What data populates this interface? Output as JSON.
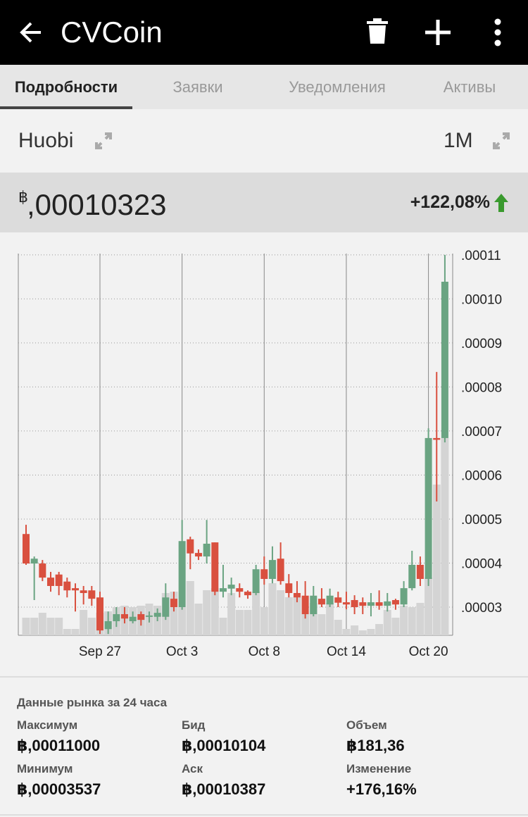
{
  "header": {
    "title": "CVCoin"
  },
  "tabs": {
    "items": [
      "Подробности",
      "Заявки",
      "Уведомления",
      "Активы"
    ],
    "active": 0
  },
  "source": {
    "exchange": "Huobi",
    "period": "1M"
  },
  "price": {
    "symbol": "฿",
    "value": ",00010323",
    "change": "+122,08%"
  },
  "chart_data": {
    "type": "candlestick",
    "categories": [
      null,
      null,
      null,
      null,
      null,
      null,
      null,
      null,
      null,
      "Sep 27",
      null,
      null,
      null,
      null,
      null,
      null,
      null,
      null,
      null,
      "Oct 3",
      null,
      null,
      null,
      null,
      null,
      null,
      null,
      null,
      null,
      "Oct 8",
      null,
      null,
      null,
      null,
      null,
      null,
      null,
      null,
      null,
      "Oct 14",
      null,
      null,
      null,
      null,
      null,
      null,
      null,
      null,
      null,
      "Oct 20",
      null,
      null
    ],
    "open": [
      4.66e-05,
      3.99e-05,
      3.99e-05,
      3.67e-05,
      3.74e-05,
      3.58e-05,
      3.43e-05,
      3.38e-05,
      3.38e-05,
      3.22e-05,
      2.5e-05,
      2.68e-05,
      2.84e-05,
      2.68e-05,
      2.84e-05,
      2.78e-05,
      2.78e-05,
      2.78e-05,
      3.19e-05,
      3e-05,
      4.54e-05,
      4.23e-05,
      4.15e-05,
      4.47e-05,
      3.35e-05,
      3.42e-05,
      3.43e-05,
      3.35e-05,
      3.32e-05,
      3.86e-05,
      3.64e-05,
      4.1e-05,
      3.54e-05,
      3.32e-05,
      3.26e-05,
      2.84e-05,
      3.19e-05,
      3.06e-05,
      3.22e-05,
      3.11e-05,
      3.16e-05,
      3.11e-05,
      3.03e-05,
      3.11e-05,
      3.03e-05,
      3.16e-05,
      3.06e-05,
      3.43e-05,
      3.96e-05,
      3.64e-05,
      6.84e-05,
      6.84e-05
    ],
    "high": [
      4.87e-05,
      4.15e-05,
      4.07e-05,
      3.8e-05,
      3.8e-05,
      3.67e-05,
      3.54e-05,
      3.48e-05,
      3.48e-05,
      3.35e-05,
      2.9e-05,
      3e-05,
      3e-05,
      2.9e-05,
      2.9e-05,
      2.9e-05,
      2.97e-05,
      3.54e-05,
      3.35e-05,
      4.98e-05,
      4.6e-05,
      4.31e-05,
      4.98e-05,
      4.47e-05,
      3.96e-05,
      3.67e-05,
      3.54e-05,
      3.38e-05,
      3.96e-05,
      4.15e-05,
      4.38e-05,
      4.47e-05,
      3.75e-05,
      3.59e-05,
      3.59e-05,
      3.48e-05,
      3.43e-05,
      3.42e-05,
      3.35e-05,
      3.35e-05,
      3.27e-05,
      3.22e-05,
      3.32e-05,
      3.38e-05,
      3.32e-05,
      3.19e-05,
      3.59e-05,
      4.28e-05,
      4.15e-05,
      7.06e-05,
      8.34e-05,
      0.00011
    ],
    "low": [
      3.96e-05,
      3.16e-05,
      3.59e-05,
      3.35e-05,
      3.27e-05,
      3.22e-05,
      2.9e-05,
      3.06e-05,
      3.03e-05,
      2.39e-05,
      2.39e-05,
      2.55e-05,
      2.63e-05,
      2.63e-05,
      2.58e-05,
      2.65e-05,
      2.68e-05,
      2.71e-05,
      2.9e-05,
      2.94e-05,
      3.86e-05,
      4.07e-05,
      3.99e-05,
      3.27e-05,
      3.22e-05,
      3.27e-05,
      3.22e-05,
      3.19e-05,
      3.27e-05,
      3.51e-05,
      3.54e-05,
      3.51e-05,
      3.22e-05,
      3.11e-05,
      2.74e-05,
      2.79e-05,
      3e-05,
      3e-05,
      3e-05,
      2.95e-05,
      2.84e-05,
      2.84e-05,
      2.79e-05,
      2.94e-05,
      2.9e-05,
      2.94e-05,
      3e-05,
      3.38e-05,
      3.48e-05,
      3.48e-05,
      5.4e-05,
      6.74e-05
    ],
    "close": [
      3.99e-05,
      4.1e-05,
      3.67e-05,
      3.48e-05,
      3.48e-05,
      3.38e-05,
      3.38e-05,
      3.32e-05,
      3.19e-05,
      2.47e-05,
      2.68e-05,
      2.84e-05,
      2.74e-05,
      2.78e-05,
      2.71e-05,
      2.81e-05,
      2.87e-05,
      3.22e-05,
      3e-05,
      4.5e-05,
      4.22e-05,
      4.15e-05,
      4.44e-05,
      3.35e-05,
      3.43e-05,
      3.51e-05,
      3.35e-05,
      3.27e-05,
      3.86e-05,
      3.64e-05,
      4.07e-05,
      3.59e-05,
      3.32e-05,
      3.22e-05,
      2.84e-05,
      3.26e-05,
      3.06e-05,
      3.26e-05,
      3.1e-05,
      3.06e-05,
      3e-05,
      3.03e-05,
      3.11e-05,
      3.03e-05,
      3.13e-05,
      3.06e-05,
      3.43e-05,
      3.96e-05,
      3.64e-05,
      6.84e-05,
      6.8e-05,
      0.0001039
    ],
    "volume": [
      25,
      25,
      32,
      25,
      25,
      9,
      9,
      36,
      25,
      32,
      34,
      40,
      42,
      40,
      42,
      45,
      42,
      60,
      62,
      40,
      77,
      45,
      64,
      67,
      25,
      60,
      36,
      36,
      62,
      40,
      74,
      64,
      54,
      54,
      30,
      46,
      30,
      46,
      22,
      9,
      14,
      7,
      9,
      16,
      36,
      25,
      42,
      40,
      46,
      82,
      214,
      280
    ],
    "up_color": "#6aa482",
    "down_color": "#d9503f",
    "volume_color": "#d4d4d4",
    "ylim": [
      2.36e-05,
      0.0001103
    ],
    "yticks": [
      {
        "value": 3e-05,
        "label": ".00003"
      },
      {
        "value": 4e-05,
        "label": ".00004"
      },
      {
        "value": 5e-05,
        "label": ".00005"
      },
      {
        "value": 6e-05,
        "label": ".00006"
      },
      {
        "value": 7e-05,
        "label": ".00007"
      },
      {
        "value": 8e-05,
        "label": ".00008"
      },
      {
        "value": 9e-05,
        "label": ".00009"
      },
      {
        "value": 0.0001,
        "label": ".00010"
      },
      {
        "value": 0.00011,
        "label": ".00011"
      }
    ],
    "grid": true
  },
  "market": {
    "title": "Данные рынка за 24 часа",
    "items": [
      {
        "label": "Максимум",
        "value": "฿,00011000"
      },
      {
        "label": "Бид",
        "value": "฿,00010104"
      },
      {
        "label": "Объем",
        "value": "฿181,36"
      },
      {
        "label": "Минимум",
        "value": "฿,00003537"
      },
      {
        "label": "Аск",
        "value": "฿,00010387"
      },
      {
        "label": "Изменение",
        "value": "+176,16%"
      }
    ]
  }
}
